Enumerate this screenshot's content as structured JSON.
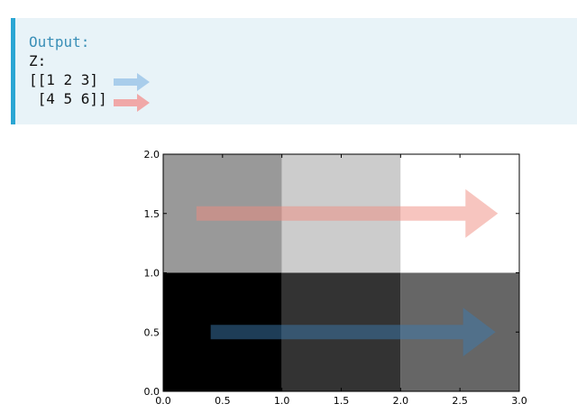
{
  "output": {
    "label": "Output:",
    "lines": [
      "Z:",
      "[[1 2 3]",
      " [4 5 6]]"
    ],
    "arrow_colors": [
      "#a9cdeb",
      "#f0a8a8"
    ]
  },
  "chart_data": {
    "type": "heatmap",
    "title": "",
    "xlabel": "",
    "ylabel": "",
    "xlim": [
      0.0,
      3.0
    ],
    "ylim": [
      0.0,
      2.0
    ],
    "xticks": [
      "0.0",
      "0.5",
      "1.0",
      "1.5",
      "2.0",
      "2.5",
      "3.0"
    ],
    "yticks": [
      "0.0",
      "0.5",
      "1.0",
      "1.5",
      "2.0"
    ],
    "cells": [
      {
        "row": 0,
        "col": 0,
        "value": 1,
        "color": "#000000"
      },
      {
        "row": 0,
        "col": 1,
        "value": 2,
        "color": "#333333"
      },
      {
        "row": 0,
        "col": 2,
        "value": 3,
        "color": "#666666"
      },
      {
        "row": 1,
        "col": 0,
        "value": 4,
        "color": "#999999"
      },
      {
        "row": 1,
        "col": 1,
        "value": 5,
        "color": "#cccccc"
      },
      {
        "row": 1,
        "col": 2,
        "value": 6,
        "color": "#ffffff"
      }
    ],
    "arrows": [
      {
        "name": "row-0",
        "x_start": 0.4,
        "x_end": 2.8,
        "y": 0.5,
        "color": "#3b79ad"
      },
      {
        "name": "row-1",
        "x_start": 0.28,
        "x_end": 2.82,
        "y": 1.5,
        "color": "#f08c80"
      }
    ]
  }
}
